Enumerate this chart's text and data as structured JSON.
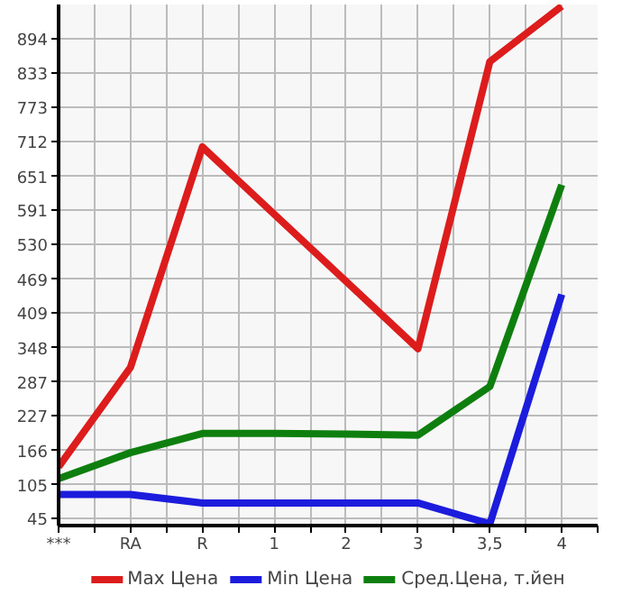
{
  "chart_data": {
    "type": "line",
    "categories": [
      "***",
      "RA",
      "R",
      "1",
      "2",
      "3",
      "3,5",
      "4"
    ],
    "series": [
      {
        "name": "Max Цена",
        "color": "#dd1c1c",
        "values": [
          137,
          313,
          703,
          584,
          465,
          346,
          854,
          952
        ]
      },
      {
        "name": "Min Цена",
        "color": "#1c1cdd",
        "values": [
          88,
          88,
          73,
          73,
          73,
          73,
          36,
          442
        ]
      },
      {
        "name": "Сред.Цена, т.йен",
        "color": "#0e7f0e",
        "values": [
          116,
          162,
          196,
          196,
          195,
          193,
          279,
          636
        ]
      }
    ],
    "ylim": [
      33,
      955
    ],
    "yticks": [
      45,
      105,
      166,
      227,
      287,
      348,
      409,
      469,
      530,
      591,
      651,
      712,
      773,
      833,
      894
    ],
    "grid": true,
    "legend": "bottom",
    "marker": "none",
    "line_style": "solid"
  }
}
